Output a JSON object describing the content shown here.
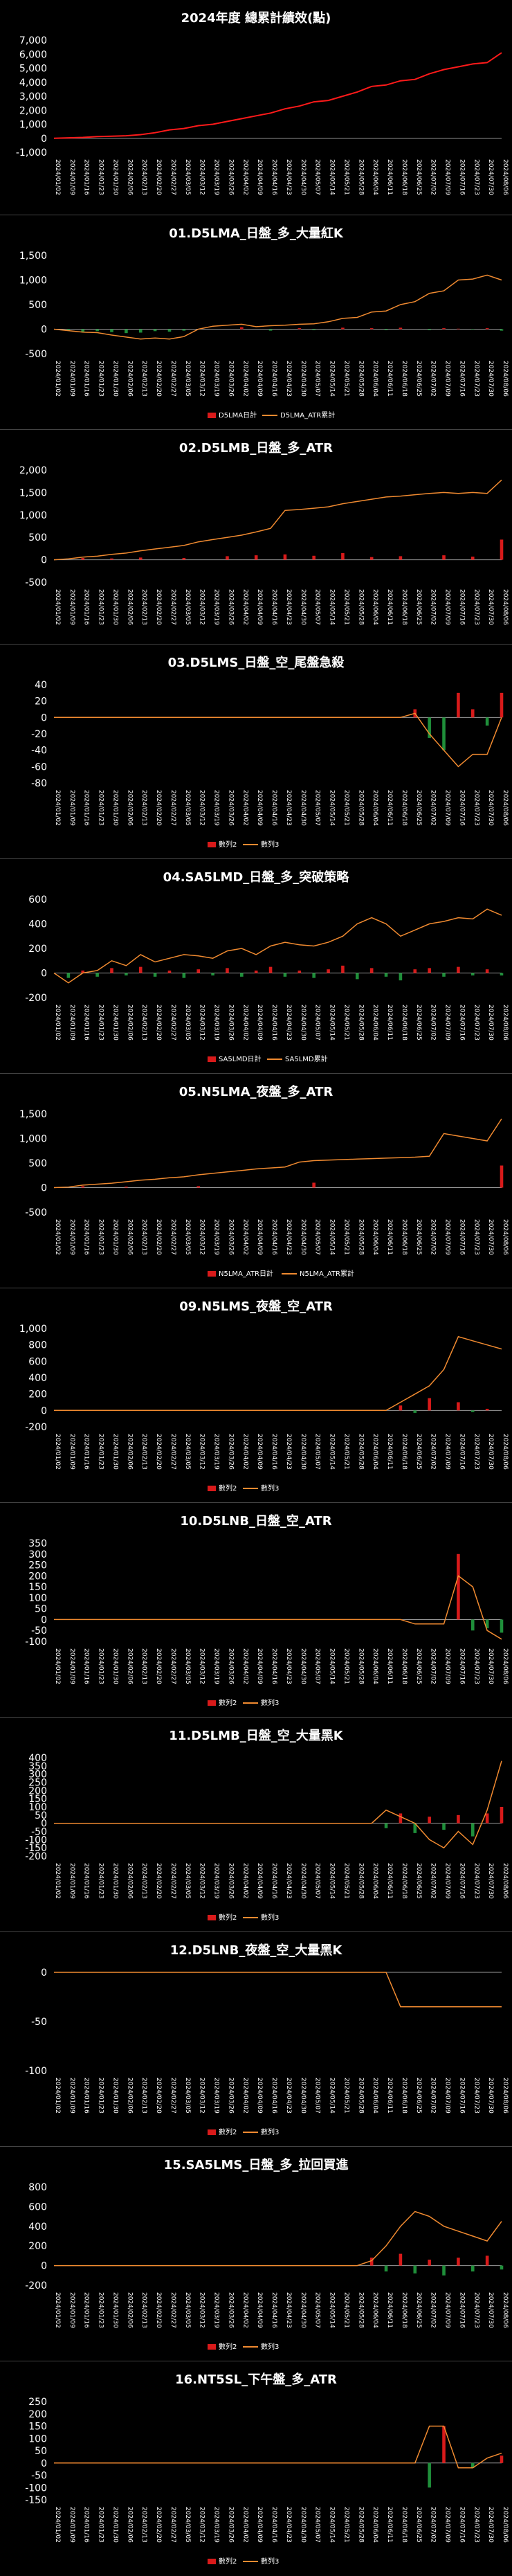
{
  "dates": [
    "2024/01/02",
    "2024/01/09",
    "2024/01/16",
    "2024/01/23",
    "2024/01/30",
    "2024/02/06",
    "2024/02/13",
    "2024/02/20",
    "2024/02/27",
    "2024/03/05",
    "2024/03/12",
    "2024/03/19",
    "2024/03/26",
    "2024/04/02",
    "2024/04/09",
    "2024/04/16",
    "2024/04/23",
    "2024/04/30",
    "2024/05/07",
    "2024/05/14",
    "2024/05/21",
    "2024/05/28",
    "2024/06/04",
    "2024/06/11",
    "2024/06/18",
    "2024/06/25",
    "2024/07/02",
    "2024/07/09",
    "2024/07/16",
    "2024/07/23",
    "2024/07/30",
    "2024/08/06"
  ],
  "colors": {
    "bar_pos": "#d81a1a",
    "bar_neg": "#1f8f3a",
    "line": "#f08a30",
    "total": "#ff1a1a",
    "zero": "#9a9a9a"
  },
  "chart_data": [
    {
      "type": "line",
      "title": "2024年度 總累計績效(點)",
      "ylim": [
        -1000,
        7000
      ],
      "yticks": [
        -1000,
        0,
        1000,
        2000,
        3000,
        4000,
        5000,
        6000,
        7000
      ],
      "legend": [],
      "series": [
        {
          "name": "",
          "kind": "line",
          "values": [
            0,
            30,
            60,
            120,
            150,
            180,
            260,
            400,
            600,
            700,
            900,
            1000,
            1200,
            1400,
            1600,
            1800,
            2100,
            2300,
            2600,
            2700,
            3000,
            3300,
            3700,
            3800,
            4100,
            4200,
            4600,
            4900,
            5100,
            5300,
            5400,
            6100
          ]
        }
      ]
    },
    {
      "type": "bar",
      "title": "01.D5LMA_日盤_多_大量紅K",
      "ylim": [
        -500,
        1500
      ],
      "yticks": [
        -500,
        0,
        500,
        1000,
        1500
      ],
      "legend": [
        "D5LMA日計",
        "D5LMA_ATR累計"
      ],
      "series": [
        {
          "name": "D5LMA日計",
          "kind": "bar",
          "values": [
            0,
            -30,
            -50,
            -40,
            -60,
            -80,
            -70,
            -40,
            -50,
            -30,
            0,
            0,
            0,
            40,
            0,
            -30,
            0,
            20,
            -20,
            0,
            30,
            0,
            20,
            -20,
            30,
            0,
            -20,
            20,
            10,
            -10,
            20,
            -30
          ]
        },
        {
          "name": "D5LMA_ATR累計",
          "kind": "line",
          "values": [
            0,
            -30,
            -60,
            -70,
            -120,
            -160,
            -200,
            -180,
            -200,
            -150,
            0,
            60,
            80,
            100,
            50,
            70,
            80,
            100,
            110,
            150,
            220,
            240,
            350,
            370,
            500,
            560,
            730,
            780,
            1000,
            1020,
            1100,
            1000
          ]
        }
      ]
    },
    {
      "type": "bar",
      "title": "02.D5LMB_日盤_多_ATR",
      "ylim": [
        -500,
        2000
      ],
      "yticks": [
        -500,
        0,
        500,
        1000,
        1500,
        2000
      ],
      "legend": [],
      "series": [
        {
          "name": "",
          "kind": "bar",
          "values": [
            0,
            0,
            40,
            0,
            30,
            0,
            50,
            0,
            0,
            40,
            0,
            0,
            80,
            0,
            100,
            0,
            120,
            0,
            90,
            0,
            150,
            0,
            60,
            0,
            80,
            0,
            0,
            100,
            0,
            70,
            0,
            450
          ]
        },
        {
          "name": "",
          "kind": "line",
          "values": [
            0,
            20,
            60,
            80,
            120,
            150,
            200,
            240,
            280,
            320,
            400,
            450,
            500,
            550,
            620,
            700,
            1100,
            1120,
            1150,
            1180,
            1250,
            1300,
            1350,
            1400,
            1420,
            1450,
            1480,
            1500,
            1480,
            1500,
            1480,
            1780
          ]
        }
      ]
    },
    {
      "type": "bar",
      "title": "03.D5LMS_日盤_空_尾盤急殺",
      "ylim": [
        -80,
        40
      ],
      "yticks": [
        -80,
        -60,
        -40,
        -20,
        0,
        20,
        40
      ],
      "legend": [
        "數列2",
        "數列3"
      ],
      "series": [
        {
          "name": "數列2",
          "kind": "bar",
          "values": [
            0,
            0,
            0,
            0,
            0,
            0,
            0,
            0,
            0,
            0,
            0,
            0,
            0,
            0,
            0,
            0,
            0,
            0,
            0,
            0,
            0,
            0,
            0,
            0,
            0,
            10,
            -25,
            -40,
            30,
            10,
            -10,
            30
          ]
        },
        {
          "name": "數列3",
          "kind": "line",
          "values": [
            0,
            0,
            0,
            0,
            0,
            0,
            0,
            0,
            0,
            0,
            0,
            0,
            0,
            0,
            0,
            0,
            0,
            0,
            0,
            0,
            0,
            0,
            0,
            0,
            0,
            5,
            -20,
            -40,
            -60,
            -45,
            -45,
            0
          ]
        }
      ]
    },
    {
      "type": "bar",
      "title": "04.SA5LMD_日盤_多_突破策略",
      "ylim": [
        -200,
        600
      ],
      "yticks": [
        -200,
        0,
        200,
        400,
        600
      ],
      "legend": [
        "SA5LMD日計",
        "SA5LMD累計"
      ],
      "series": [
        {
          "name": "SA5LMD日計",
          "kind": "bar",
          "values": [
            0,
            -40,
            20,
            -30,
            40,
            -20,
            50,
            -30,
            20,
            -40,
            30,
            -20,
            40,
            -30,
            20,
            50,
            -30,
            20,
            -40,
            30,
            60,
            -50,
            40,
            -30,
            -60,
            30,
            40,
            -30,
            50,
            -20,
            30,
            -20
          ]
        },
        {
          "name": "SA5LMD累計",
          "kind": "line",
          "values": [
            0,
            -80,
            0,
            20,
            100,
            60,
            150,
            90,
            120,
            150,
            140,
            120,
            180,
            200,
            150,
            220,
            250,
            230,
            220,
            250,
            300,
            400,
            450,
            400,
            300,
            350,
            400,
            420,
            450,
            440,
            520,
            470
          ]
        }
      ]
    },
    {
      "type": "bar",
      "title": "05.N5LMA_夜盤_多_ATR",
      "ylim": [
        -500,
        1500
      ],
      "yticks": [
        -500,
        0,
        500,
        1000,
        1500
      ],
      "legend": [
        "N5LMA_ATR日計",
        "N5LMA_ATR累計"
      ],
      "series": [
        {
          "name": "N5LMA_ATR日計",
          "kind": "bar",
          "values": [
            0,
            0,
            30,
            0,
            0,
            20,
            0,
            0,
            0,
            0,
            30,
            0,
            0,
            0,
            0,
            0,
            0,
            0,
            100,
            0,
            0,
            0,
            0,
            0,
            0,
            0,
            0,
            0,
            0,
            0,
            0,
            450
          ]
        },
        {
          "name": "N5LMA_ATR累計",
          "kind": "line",
          "values": [
            0,
            10,
            50,
            70,
            90,
            120,
            150,
            170,
            200,
            220,
            260,
            290,
            320,
            350,
            380,
            400,
            420,
            520,
            550,
            560,
            570,
            580,
            590,
            600,
            610,
            620,
            640,
            1100,
            1050,
            1000,
            950,
            1400
          ]
        }
      ]
    },
    {
      "type": "bar",
      "title": "09.N5LMS_夜盤_空_ATR",
      "ylim": [
        -200,
        1000
      ],
      "yticks": [
        -200,
        0,
        200,
        400,
        600,
        800,
        1000
      ],
      "legend": [
        "數列2",
        "數列3"
      ],
      "series": [
        {
          "name": "數列2",
          "kind": "bar",
          "values": [
            0,
            0,
            0,
            0,
            0,
            0,
            0,
            0,
            0,
            0,
            0,
            0,
            0,
            0,
            0,
            0,
            0,
            0,
            0,
            0,
            0,
            0,
            0,
            0,
            60,
            -30,
            150,
            0,
            100,
            -20,
            20,
            0
          ]
        },
        {
          "name": "數列3",
          "kind": "line",
          "values": [
            0,
            0,
            0,
            0,
            0,
            0,
            0,
            0,
            0,
            0,
            0,
            0,
            0,
            0,
            0,
            0,
            0,
            0,
            0,
            0,
            0,
            0,
            0,
            0,
            100,
            200,
            300,
            500,
            900,
            850,
            800,
            750
          ]
        }
      ]
    },
    {
      "type": "bar",
      "title": "10.D5LNB_日盤_空_ATR",
      "ylim": [
        -100,
        350
      ],
      "yticks": [
        -100,
        -50,
        0,
        50,
        100,
        150,
        200,
        250,
        300,
        350
      ],
      "legend": [
        "數列2",
        "數列3"
      ],
      "series": [
        {
          "name": "數列2",
          "kind": "bar",
          "values": [
            0,
            0,
            0,
            0,
            0,
            0,
            0,
            0,
            0,
            0,
            0,
            0,
            0,
            0,
            0,
            0,
            0,
            0,
            0,
            0,
            0,
            0,
            0,
            0,
            0,
            0,
            0,
            0,
            300,
            -50,
            -40,
            -60
          ]
        },
        {
          "name": "數列3",
          "kind": "line",
          "values": [
            0,
            0,
            0,
            0,
            0,
            0,
            0,
            0,
            0,
            0,
            0,
            0,
            0,
            0,
            0,
            0,
            0,
            0,
            0,
            0,
            0,
            0,
            0,
            0,
            0,
            -20,
            -20,
            -20,
            200,
            150,
            -50,
            -90
          ]
        }
      ]
    },
    {
      "type": "bar",
      "title": "11.D5LMB_日盤_空_大量黑K",
      "ylim": [
        -200,
        400
      ],
      "yticks": [
        -200,
        -150,
        -100,
        -50,
        0,
        50,
        100,
        150,
        200,
        250,
        300,
        350,
        400
      ],
      "legend": [
        "數列2",
        "數列3"
      ],
      "series": [
        {
          "name": "數列2",
          "kind": "bar",
          "values": [
            0,
            0,
            0,
            0,
            0,
            0,
            0,
            0,
            0,
            0,
            0,
            0,
            0,
            0,
            0,
            0,
            0,
            0,
            0,
            0,
            0,
            0,
            0,
            -30,
            60,
            -60,
            40,
            -40,
            50,
            -80,
            60,
            100
          ]
        },
        {
          "name": "數列3",
          "kind": "line",
          "values": [
            0,
            0,
            0,
            0,
            0,
            0,
            0,
            0,
            0,
            0,
            0,
            0,
            0,
            0,
            0,
            0,
            0,
            0,
            0,
            0,
            0,
            0,
            0,
            80,
            40,
            0,
            -100,
            -150,
            -50,
            -130,
            80,
            380
          ]
        }
      ]
    },
    {
      "type": "line",
      "title": "12.D5LNB_夜盤_空_大量黑K",
      "ylim": [
        -100,
        0
      ],
      "yticks": [
        -100,
        -50,
        0
      ],
      "legend": [
        "數列2",
        "數列3"
      ],
      "series": [
        {
          "name": "數列2",
          "kind": "bar",
          "values": [
            0,
            0,
            0,
            0,
            0,
            0,
            0,
            0,
            0,
            0,
            0,
            0,
            0,
            0,
            0,
            0,
            0,
            0,
            0,
            0,
            0,
            0,
            0,
            0,
            0,
            0,
            0,
            0,
            0,
            0,
            0,
            0
          ]
        },
        {
          "name": "數列3",
          "kind": "line",
          "values": [
            0,
            0,
            0,
            0,
            0,
            0,
            0,
            0,
            0,
            0,
            0,
            0,
            0,
            0,
            0,
            0,
            0,
            0,
            0,
            0,
            0,
            0,
            0,
            0,
            -35,
            -35,
            -35,
            -35,
            -35,
            -35,
            -35,
            -35
          ]
        }
      ]
    },
    {
      "type": "bar",
      "title": "15.SA5LMS_日盤_多_拉回買進",
      "ylim": [
        -200,
        800
      ],
      "yticks": [
        -200,
        0,
        200,
        400,
        600,
        800
      ],
      "legend": [
        "數列2",
        "數列3"
      ],
      "series": [
        {
          "name": "數列2",
          "kind": "bar",
          "values": [
            0,
            0,
            0,
            0,
            0,
            0,
            0,
            0,
            0,
            0,
            0,
            0,
            0,
            0,
            0,
            0,
            0,
            0,
            0,
            0,
            0,
            0,
            80,
            -60,
            120,
            -80,
            60,
            -100,
            80,
            -60,
            100,
            -40
          ]
        },
        {
          "name": "數列3",
          "kind": "line",
          "values": [
            0,
            0,
            0,
            0,
            0,
            0,
            0,
            0,
            0,
            0,
            0,
            0,
            0,
            0,
            0,
            0,
            0,
            0,
            0,
            0,
            0,
            0,
            50,
            200,
            400,
            550,
            500,
            400,
            350,
            300,
            250,
            450
          ]
        }
      ]
    },
    {
      "type": "bar",
      "title": "16.NT5SL_下午盤_多_ATR",
      "ylim": [
        -150,
        250
      ],
      "yticks": [
        -150,
        -100,
        -50,
        0,
        50,
        100,
        150,
        200,
        250
      ],
      "legend": [
        "數列2",
        "數列3"
      ],
      "series": [
        {
          "name": "數列2",
          "kind": "bar",
          "values": [
            0,
            0,
            0,
            0,
            0,
            0,
            0,
            0,
            0,
            0,
            0,
            0,
            0,
            0,
            0,
            0,
            0,
            0,
            0,
            0,
            0,
            0,
            0,
            0,
            0,
            0,
            -100,
            150,
            0,
            -20,
            0,
            30
          ]
        },
        {
          "name": "數列3",
          "kind": "line",
          "values": [
            0,
            0,
            0,
            0,
            0,
            0,
            0,
            0,
            0,
            0,
            0,
            0,
            0,
            0,
            0,
            0,
            0,
            0,
            0,
            0,
            0,
            0,
            0,
            0,
            0,
            0,
            150,
            150,
            -20,
            -20,
            20,
            40
          ]
        }
      ]
    }
  ]
}
